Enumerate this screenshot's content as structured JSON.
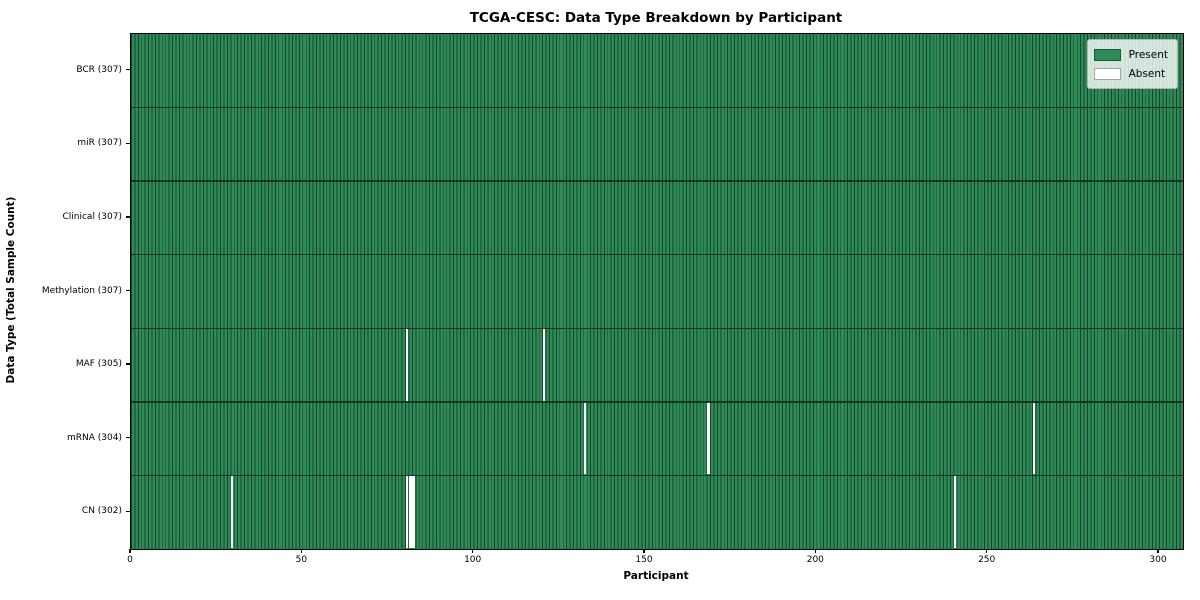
{
  "figure": {
    "title": "TCGA-CESC: Data Type Breakdown by Participant",
    "xlabel": "Participant",
    "ylabel": "Data Type (Total Sample Count)"
  },
  "legend": {
    "items": [
      {
        "label": "Present",
        "color": "#2e8b57"
      },
      {
        "label": "Absent",
        "color": "#ffffff"
      }
    ]
  },
  "chart_data": {
    "type": "heatmap",
    "title": "TCGA-CESC: Data Type Breakdown by Participant",
    "xlabel": "Participant",
    "ylabel": "Data Type (Total Sample Count)",
    "x_range": [
      0,
      307
    ],
    "x_ticks": [
      0,
      50,
      100,
      150,
      200,
      250,
      300
    ],
    "n_participants": 307,
    "grid": false,
    "legend_position": "upper right",
    "value_colors": {
      "present": "#2e8b57",
      "absent": "#ffffff"
    },
    "rows": [
      {
        "label": "BCR (307)",
        "data_type": "BCR",
        "count": 307,
        "absent_participants": []
      },
      {
        "label": "miR (307)",
        "data_type": "miR",
        "count": 307,
        "absent_participants": []
      },
      {
        "label": "Clinical (307)",
        "data_type": "Clinical",
        "count": 307,
        "absent_participants": []
      },
      {
        "label": "Methylation (307)",
        "data_type": "Methylation",
        "count": 307,
        "absent_participants": []
      },
      {
        "label": "MAF (305)",
        "data_type": "MAF",
        "count": 305,
        "absent_participants": [
          80,
          120
        ]
      },
      {
        "label": "mRNA (304)",
        "data_type": "mRNA",
        "count": 304,
        "absent_participants": [
          132,
          168,
          263
        ]
      },
      {
        "label": "CN (302)",
        "data_type": "CN",
        "count": 302,
        "absent_participants": [
          29,
          80,
          81,
          82,
          240
        ]
      }
    ]
  }
}
